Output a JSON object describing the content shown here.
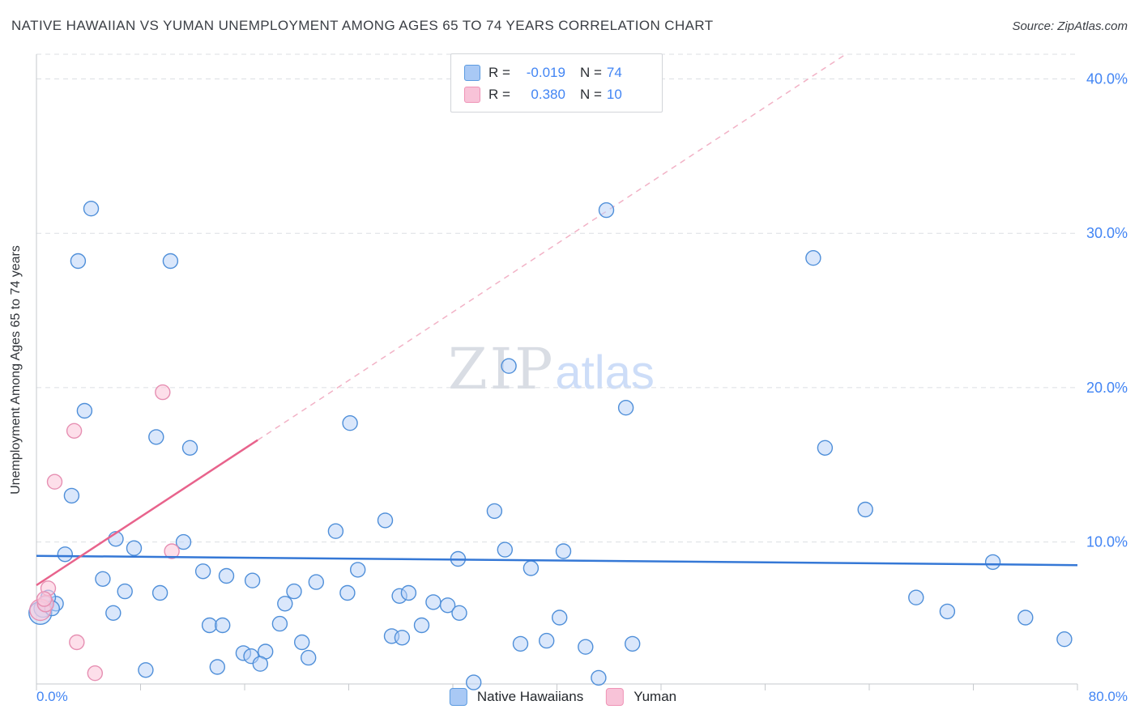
{
  "header": {
    "title": "NATIVE HAWAIIAN VS YUMAN UNEMPLOYMENT AMONG AGES 65 TO 74 YEARS CORRELATION CHART",
    "source": "Source: ZipAtlas.com"
  },
  "axes": {
    "y_label": "Unemployment Among Ages 65 to 74 years",
    "x_min_label": "0.0%",
    "x_max_label": "80.0%"
  },
  "legend": {
    "rows": [
      {
        "r_label": "R =",
        "r_value": "-0.019",
        "n_label": "N =",
        "n_value": "74"
      },
      {
        "r_label": "R =",
        "r_value": "0.380",
        "n_label": "N =",
        "n_value": "10"
      }
    ]
  },
  "bottom_legend": {
    "series1": "Native Hawaiians",
    "series2": "Yuman"
  },
  "watermark": {
    "zip": "ZIP",
    "atlas": "atlas"
  },
  "colors": {
    "accent_blue": "#4285f4",
    "blue_point_fill": "#b5d0f7",
    "blue_point_stroke": "#4f8fd9",
    "pink_point_fill": "#fbc9dc",
    "pink_point_stroke": "#e68fb2",
    "blue_trend": "#3578d6",
    "pink_trend": "#e8638c",
    "pink_trend_dashed": "#f2b2c6"
  },
  "chart_data": {
    "type": "scatter",
    "title": "NATIVE HAWAIIAN VS YUMAN UNEMPLOYMENT AMONG AGES 65 TO 74 YEARS CORRELATION CHART",
    "xlabel_range": [
      "0.0%",
      "80.0%"
    ],
    "ylabel": "Unemployment Among Ages 65 to 74 years",
    "xlim": [
      0,
      80
    ],
    "ylim": [
      0.8,
      41.6
    ],
    "x_tick_step": 8,
    "y_ticks": [
      40,
      30,
      20,
      10
    ],
    "y_tick_labels": [
      "40.0%",
      "30.0%",
      "20.0%",
      "10.0%"
    ],
    "grid": "horizontal-dashed",
    "legend_position": "bottom-center",
    "series": [
      {
        "name": "Native Hawaiians",
        "slug": "native-hawaiians",
        "r": -0.019,
        "n": 74,
        "fill": "#b5d0f7",
        "stroke": "#4f8fd9",
        "fill_opacity": 0.5,
        "points": [
          [
            4.2,
            31.6
          ],
          [
            43.8,
            31.5
          ],
          [
            3.2,
            28.2
          ],
          [
            10.3,
            28.2
          ],
          [
            59.7,
            28.4
          ],
          [
            36.3,
            21.4
          ],
          [
            45.3,
            18.7
          ],
          [
            24.1,
            17.7
          ],
          [
            9.2,
            16.8
          ],
          [
            11.8,
            16.1
          ],
          [
            60.6,
            16.1
          ],
          [
            3.7,
            18.5
          ],
          [
            2.7,
            13.0
          ],
          [
            63.7,
            12.1
          ],
          [
            35.2,
            12.0
          ],
          [
            26.8,
            11.4
          ],
          [
            23.0,
            10.7
          ],
          [
            6.1,
            10.2
          ],
          [
            11.3,
            10.0
          ],
          [
            36.0,
            9.5
          ],
          [
            40.5,
            9.4
          ],
          [
            2.2,
            9.2
          ],
          [
            73.5,
            8.7
          ],
          [
            32.4,
            8.9
          ],
          [
            24.7,
            8.2
          ],
          [
            12.8,
            8.1
          ],
          [
            38.0,
            8.3
          ],
          [
            5.1,
            7.6
          ],
          [
            14.6,
            7.8
          ],
          [
            16.6,
            7.5
          ],
          [
            21.5,
            7.4
          ],
          [
            19.8,
            6.8
          ],
          [
            23.9,
            6.7
          ],
          [
            6.8,
            6.8
          ],
          [
            9.5,
            6.7
          ],
          [
            27.9,
            6.5
          ],
          [
            28.6,
            6.7
          ],
          [
            30.5,
            6.1
          ],
          [
            31.6,
            5.9
          ],
          [
            1.5,
            6.0
          ],
          [
            0.5,
            5.7,
            11
          ],
          [
            19.1,
            6.0
          ],
          [
            32.5,
            5.4
          ],
          [
            5.9,
            5.4
          ],
          [
            70.0,
            5.5
          ],
          [
            40.2,
            5.1
          ],
          [
            67.6,
            6.4
          ],
          [
            13.3,
            4.6
          ],
          [
            14.3,
            4.6
          ],
          [
            18.7,
            4.7
          ],
          [
            29.6,
            4.6
          ],
          [
            39.2,
            3.6
          ],
          [
            27.3,
            3.9
          ],
          [
            28.1,
            3.8
          ],
          [
            37.2,
            3.4
          ],
          [
            45.8,
            3.4
          ],
          [
            20.4,
            3.5
          ],
          [
            15.9,
            2.8
          ],
          [
            16.5,
            2.6
          ],
          [
            17.6,
            2.9
          ],
          [
            20.9,
            2.5
          ],
          [
            42.2,
            3.2
          ],
          [
            8.4,
            1.7
          ],
          [
            13.9,
            1.9
          ],
          [
            17.2,
            2.1
          ],
          [
            33.6,
            0.9
          ],
          [
            43.2,
            1.2
          ],
          [
            0.7,
            6.0
          ],
          [
            0.9,
            6.4
          ],
          [
            0.3,
            5.4,
            14
          ],
          [
            1.2,
            5.7
          ],
          [
            76.0,
            5.1
          ],
          [
            79.0,
            3.7
          ],
          [
            7.5,
            9.6
          ]
        ]
      },
      {
        "name": "Yuman",
        "slug": "yuman",
        "r": 0.38,
        "n": 10,
        "fill": "#fbc9dc",
        "stroke": "#e68fb2",
        "fill_opacity": 0.6,
        "points": [
          [
            0.3,
            5.6,
            13
          ],
          [
            0.7,
            6.0,
            10
          ],
          [
            0.9,
            7.0
          ],
          [
            1.4,
            13.9
          ],
          [
            2.9,
            17.2
          ],
          [
            9.7,
            19.7
          ],
          [
            10.4,
            9.4
          ],
          [
            3.1,
            3.5
          ],
          [
            4.5,
            1.5
          ],
          [
            0.6,
            6.3
          ]
        ]
      }
    ],
    "trend_lines": [
      {
        "name": "native-hawaiians-trend-line",
        "style": "solid",
        "color": "#3578d6",
        "width": 2.5,
        "x1": 0,
        "y1": 9.1,
        "x2": 80,
        "y2": 8.5
      },
      {
        "name": "yuman-trend-line",
        "style": "solid",
        "color": "#e8638c",
        "width": 2.5,
        "x1": 0,
        "y1": 7.2,
        "x2": 17,
        "y2": 16.6
      },
      {
        "name": "yuman-trend-extension",
        "style": "dashed",
        "color": "#f2b2c6",
        "width": 1.5,
        "x1": 17,
        "y1": 16.6,
        "x2": 62.2,
        "y2": 41.6
      }
    ]
  }
}
